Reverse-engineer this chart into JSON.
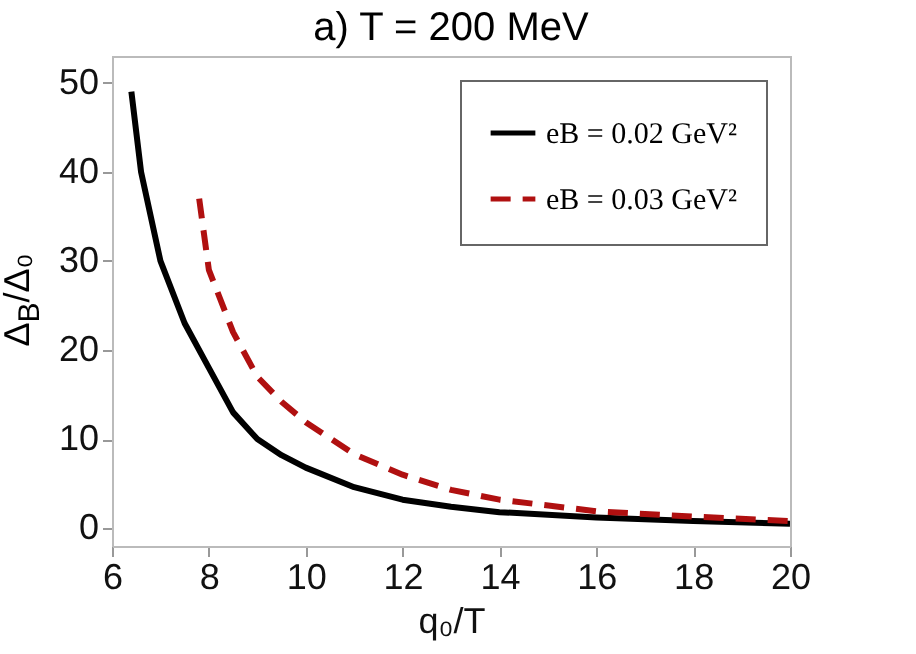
{
  "chart_data": {
    "type": "line",
    "title": "a) T = 200 MeV",
    "xlabel": "q₀/T",
    "ylabel": "Δ$_{B}$/Δ₀",
    "xlim": [
      6,
      20
    ],
    "ylim": [
      -2,
      53
    ],
    "xticks": [
      6,
      8,
      10,
      12,
      14,
      16,
      18,
      20
    ],
    "yticks": [
      0,
      10,
      20,
      30,
      40,
      50
    ],
    "legend": "top right",
    "grid": false,
    "series": [
      {
        "name": "eB = 0.02 GeV²",
        "color": "#000000",
        "line_style": "solid",
        "x": [
          6.4,
          6.6,
          7,
          7.5,
          8,
          8.5,
          9,
          9.5,
          10,
          11,
          12,
          13,
          14,
          16,
          18,
          20
        ],
        "values": [
          49,
          40,
          30,
          23,
          18,
          13,
          10,
          8.2,
          6.8,
          4.6,
          3.2,
          2.4,
          1.8,
          1.2,
          0.8,
          0.5
        ]
      },
      {
        "name": "eB = 0.03 GeV²",
        "color": "#b01010",
        "line_style": "dashed",
        "x": [
          7.8,
          7.9,
          8,
          8.5,
          9,
          9.5,
          10,
          11,
          12,
          13,
          14,
          16,
          18,
          20
        ],
        "values": [
          37,
          33,
          29,
          22,
          17,
          14.2,
          11.9,
          8.3,
          6,
          4.3,
          3.2,
          1.9,
          1.3,
          0.8
        ]
      }
    ]
  }
}
